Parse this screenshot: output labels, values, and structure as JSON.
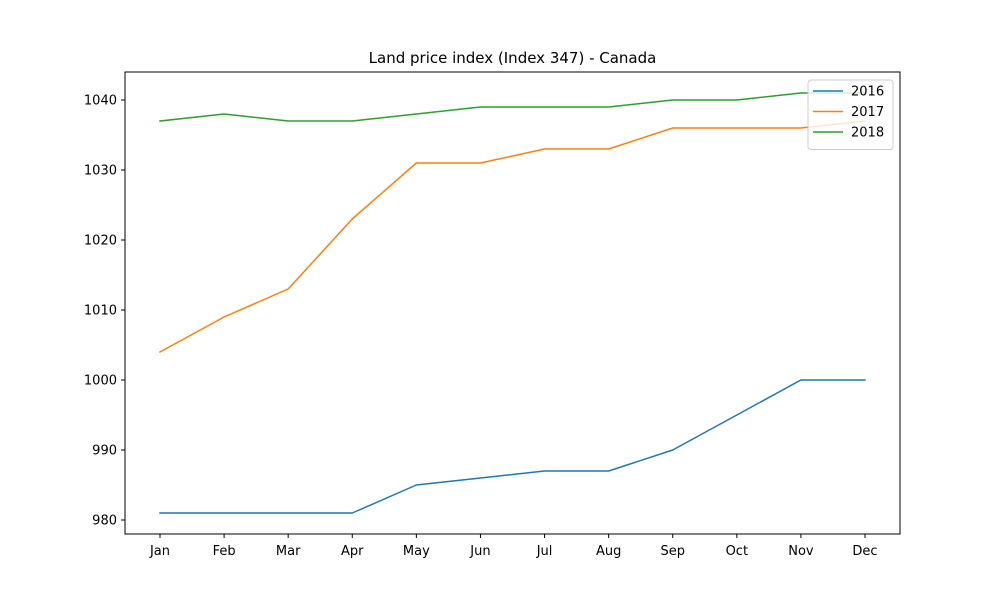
{
  "chart_data": {
    "type": "line",
    "title": "Land price index (Index 347) - Canada",
    "xlabel": "",
    "ylabel": "",
    "categories": [
      "Jan",
      "Feb",
      "Mar",
      "Apr",
      "May",
      "Jun",
      "Jul",
      "Aug",
      "Sep",
      "Oct",
      "Nov",
      "Dec"
    ],
    "series": [
      {
        "name": "2016",
        "color": "#1f77b4",
        "values": [
          981,
          981,
          981,
          981,
          985,
          986,
          987,
          987,
          990,
          995,
          1000,
          1000
        ]
      },
      {
        "name": "2017",
        "color": "#ff7f0e",
        "values": [
          1004,
          1009,
          1013,
          1023,
          1031,
          1031,
          1033,
          1033,
          1036,
          1036,
          1036,
          1037
        ]
      },
      {
        "name": "2018",
        "color": "#2ca02c",
        "values": [
          1037,
          1038,
          1037,
          1037,
          1038,
          1039,
          1039,
          1039,
          1040,
          1040,
          1041,
          1041
        ]
      }
    ],
    "yticks": [
      980,
      990,
      1000,
      1010,
      1020,
      1030,
      1040
    ],
    "ylim": [
      978.0,
      1044.0
    ],
    "grid": false,
    "legend_position": "top-right"
  }
}
